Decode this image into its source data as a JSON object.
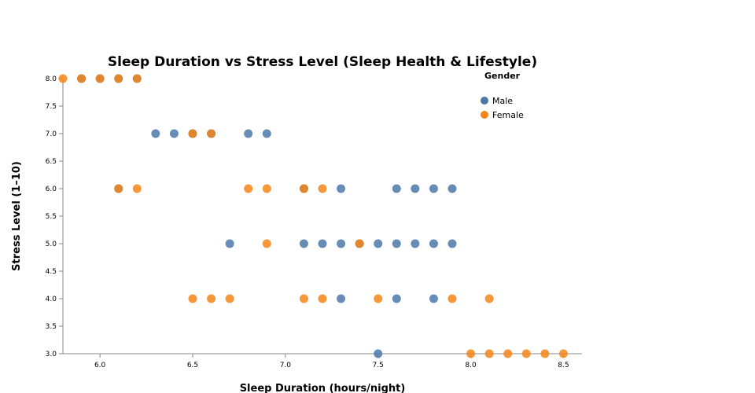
{
  "chart_data": {
    "type": "scatter",
    "title": "Sleep Duration vs Stress Level (Sleep Health & Lifestyle)",
    "xlabel": "Sleep Duration (hours/night)",
    "ylabel": "Stress Level (1–10)",
    "xlim": [
      5.8,
      8.6
    ],
    "ylim": [
      3.0,
      8.0
    ],
    "x_ticks": [
      "6.0",
      "6.5",
      "7.0",
      "7.5",
      "8.0",
      "8.5"
    ],
    "y_ticks": [
      "3.0",
      "3.5",
      "4.0",
      "4.5",
      "5.0",
      "5.5",
      "6.0",
      "6.5",
      "7.0",
      "7.5",
      "8.0"
    ],
    "grid": false,
    "legend": {
      "title": "Gender",
      "position": "top-right"
    },
    "series": [
      {
        "name": "Male",
        "color": "#4c78a8",
        "points": [
          [
            5.9,
            8
          ],
          [
            6.0,
            8
          ],
          [
            6.1,
            8
          ],
          [
            6.2,
            8
          ],
          [
            6.3,
            7
          ],
          [
            6.4,
            7
          ],
          [
            6.5,
            7
          ],
          [
            6.6,
            7
          ],
          [
            6.8,
            7
          ],
          [
            6.9,
            7
          ],
          [
            6.1,
            6
          ],
          [
            7.1,
            6
          ],
          [
            7.3,
            6
          ],
          [
            7.6,
            6
          ],
          [
            7.7,
            6
          ],
          [
            7.8,
            6
          ],
          [
            7.9,
            6
          ],
          [
            6.7,
            5
          ],
          [
            7.1,
            5
          ],
          [
            7.2,
            5
          ],
          [
            7.3,
            5
          ],
          [
            7.4,
            5
          ],
          [
            7.5,
            5
          ],
          [
            7.6,
            5
          ],
          [
            7.7,
            5
          ],
          [
            7.8,
            5
          ],
          [
            7.9,
            5
          ],
          [
            7.3,
            4
          ],
          [
            7.6,
            4
          ],
          [
            7.8,
            4
          ],
          [
            7.5,
            3
          ]
        ]
      },
      {
        "name": "Female",
        "color": "#f58518",
        "points": [
          [
            5.8,
            8
          ],
          [
            5.9,
            8
          ],
          [
            6.0,
            8
          ],
          [
            6.1,
            8
          ],
          [
            6.2,
            8
          ],
          [
            6.5,
            7
          ],
          [
            6.6,
            7
          ],
          [
            6.1,
            6
          ],
          [
            6.2,
            6
          ],
          [
            6.8,
            6
          ],
          [
            6.9,
            6
          ],
          [
            7.1,
            6
          ],
          [
            7.2,
            6
          ],
          [
            6.9,
            5
          ],
          [
            7.4,
            5
          ],
          [
            6.5,
            4
          ],
          [
            6.6,
            4
          ],
          [
            6.7,
            4
          ],
          [
            7.1,
            4
          ],
          [
            7.2,
            4
          ],
          [
            7.5,
            4
          ],
          [
            7.9,
            4
          ],
          [
            8.1,
            4
          ],
          [
            8.0,
            3
          ],
          [
            8.1,
            3
          ],
          [
            8.2,
            3
          ],
          [
            8.3,
            3
          ],
          [
            8.4,
            3
          ],
          [
            8.5,
            3
          ]
        ]
      }
    ]
  }
}
